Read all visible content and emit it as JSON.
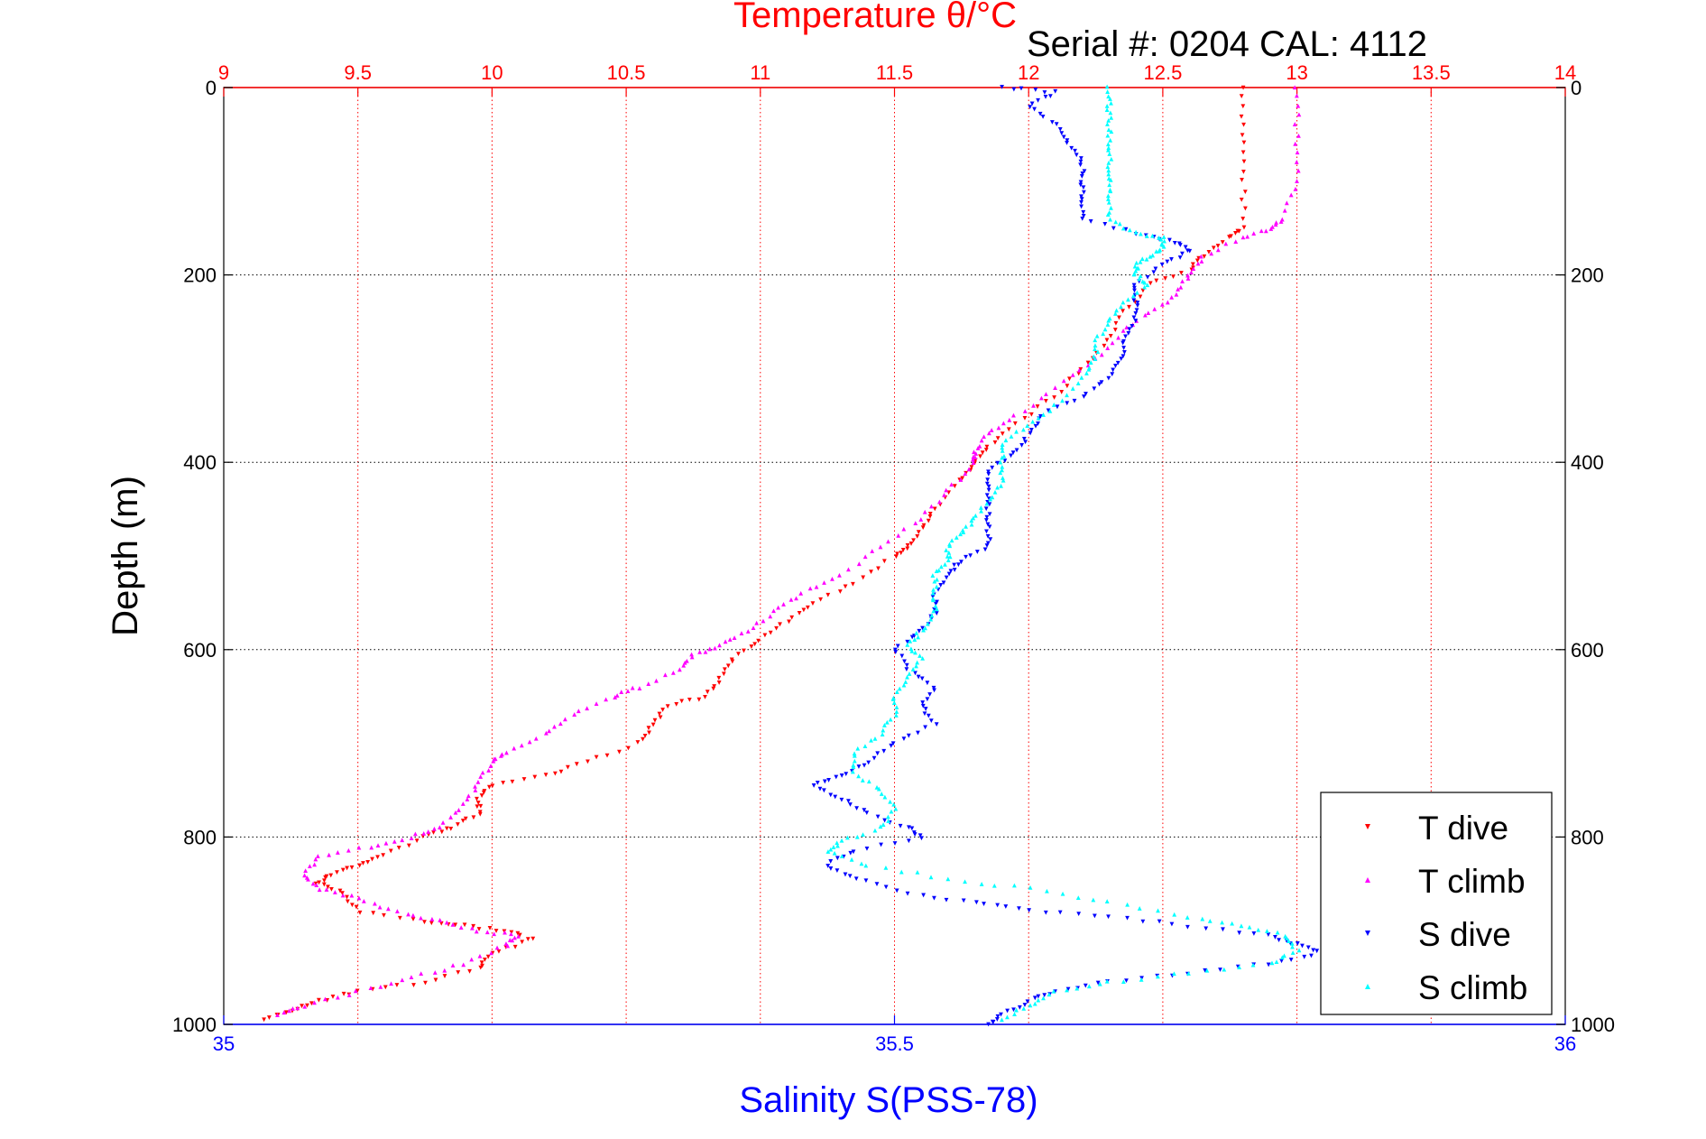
{
  "chart_data": {
    "type": "scatter",
    "serial_label": "Serial #: 0204  CAL: 4112",
    "ylabel": "Depth (m)",
    "ylim": [
      0,
      1000
    ],
    "y_ticks": [
      0,
      200,
      400,
      600,
      800,
      1000
    ],
    "y_tick_labels": [
      "0",
      "200",
      "400",
      "600",
      "800",
      "1000"
    ],
    "x_axis_top": {
      "label": "Temperature θ/°C",
      "range": [
        9,
        14
      ],
      "ticks": [
        9,
        9.5,
        10,
        10.5,
        11,
        11.5,
        12,
        12.5,
        13,
        13.5,
        14
      ],
      "tick_labels": [
        "9",
        "9.5",
        "10",
        "10.5",
        "11",
        "11.5",
        "12",
        "12.5",
        "13",
        "13.5",
        "14"
      ],
      "color": "#ff0000"
    },
    "x_axis_bottom": {
      "label": "Salinity S(PSS-78)",
      "range": [
        35,
        36
      ],
      "ticks": [
        35,
        35.5,
        36
      ],
      "tick_labels": [
        "35",
        "35.5",
        "36"
      ],
      "color": "#0000ff"
    },
    "grid": true,
    "legend_position": "bottom-right",
    "series": [
      {
        "name": "T dive",
        "axis": "top",
        "color": "#ff0000",
        "points": [
          [
            12.8,
            0
          ],
          [
            12.8,
            50
          ],
          [
            12.8,
            100
          ],
          [
            12.8,
            150
          ],
          [
            12.75,
            160
          ],
          [
            12.65,
            180
          ],
          [
            12.6,
            195
          ],
          [
            12.45,
            210
          ],
          [
            12.35,
            240
          ],
          [
            12.3,
            270
          ],
          [
            12.2,
            300
          ],
          [
            12.1,
            330
          ],
          [
            11.95,
            360
          ],
          [
            11.85,
            385
          ],
          [
            11.8,
            400
          ],
          [
            11.75,
            420
          ],
          [
            11.65,
            450
          ],
          [
            11.6,
            470
          ],
          [
            11.55,
            490
          ],
          [
            11.5,
            500
          ],
          [
            11.35,
            530
          ],
          [
            11.2,
            550
          ],
          [
            11.1,
            570
          ],
          [
            11.0,
            590
          ],
          [
            10.9,
            610
          ],
          [
            10.85,
            630
          ],
          [
            10.8,
            650
          ],
          [
            10.65,
            660
          ],
          [
            10.6,
            680
          ],
          [
            10.55,
            700
          ],
          [
            10.35,
            720
          ],
          [
            10.2,
            735
          ],
          [
            10.0,
            745
          ],
          [
            9.95,
            760
          ],
          [
            9.95,
            775
          ],
          [
            9.85,
            790
          ],
          [
            9.75,
            800
          ],
          [
            9.6,
            820
          ],
          [
            9.5,
            830
          ],
          [
            9.4,
            840
          ],
          [
            9.35,
            850
          ],
          [
            9.45,
            860
          ],
          [
            9.5,
            880
          ],
          [
            9.75,
            890
          ],
          [
            9.9,
            895
          ],
          [
            10.05,
            900
          ],
          [
            10.15,
            910
          ],
          [
            10.0,
            925
          ],
          [
            9.95,
            940
          ],
          [
            9.75,
            955
          ],
          [
            9.5,
            965
          ],
          [
            9.35,
            975
          ],
          [
            9.25,
            985
          ],
          [
            9.15,
            995
          ]
        ]
      },
      {
        "name": "T climb",
        "axis": "top",
        "color": "#ff00ff",
        "points": [
          [
            13.0,
            0
          ],
          [
            13.0,
            50
          ],
          [
            13.0,
            100
          ],
          [
            12.95,
            140
          ],
          [
            12.9,
            150
          ],
          [
            12.8,
            160
          ],
          [
            12.65,
            180
          ],
          [
            12.6,
            200
          ],
          [
            12.55,
            220
          ],
          [
            12.45,
            240
          ],
          [
            12.35,
            260
          ],
          [
            12.25,
            290
          ],
          [
            12.1,
            320
          ],
          [
            11.95,
            350
          ],
          [
            11.85,
            370
          ],
          [
            11.8,
            390
          ],
          [
            11.8,
            400
          ],
          [
            11.7,
            430
          ],
          [
            11.6,
            460
          ],
          [
            11.45,
            490
          ],
          [
            11.3,
            520
          ],
          [
            11.15,
            540
          ],
          [
            11.05,
            560
          ],
          [
            10.95,
            580
          ],
          [
            10.85,
            595
          ],
          [
            10.75,
            605
          ],
          [
            10.7,
            620
          ],
          [
            10.55,
            640
          ],
          [
            10.45,
            650
          ],
          [
            10.3,
            670
          ],
          [
            10.2,
            690
          ],
          [
            10.05,
            710
          ],
          [
            10.0,
            720
          ],
          [
            9.95,
            740
          ],
          [
            9.9,
            765
          ],
          [
            9.8,
            790
          ],
          [
            9.7,
            800
          ],
          [
            9.55,
            810
          ],
          [
            9.35,
            820
          ],
          [
            9.3,
            840
          ],
          [
            9.35,
            855
          ],
          [
            9.5,
            865
          ],
          [
            9.65,
            880
          ],
          [
            9.8,
            890
          ],
          [
            9.95,
            900
          ],
          [
            10.1,
            905
          ],
          [
            10.05,
            915
          ],
          [
            9.9,
            935
          ],
          [
            9.7,
            950
          ],
          [
            9.5,
            965
          ],
          [
            9.3,
            980
          ],
          [
            9.2,
            990
          ]
        ]
      },
      {
        "name": "S dive",
        "axis": "bottom",
        "color": "#0000ff",
        "points": [
          [
            35.58,
            0
          ],
          [
            35.62,
            5
          ],
          [
            35.6,
            20
          ],
          [
            35.62,
            40
          ],
          [
            35.63,
            60
          ],
          [
            35.64,
            80
          ],
          [
            35.64,
            100
          ],
          [
            35.64,
            120
          ],
          [
            35.64,
            140
          ],
          [
            35.68,
            155
          ],
          [
            35.71,
            165
          ],
          [
            35.72,
            175
          ],
          [
            35.7,
            190
          ],
          [
            35.68,
            210
          ],
          [
            35.68,
            230
          ],
          [
            35.68,
            250
          ],
          [
            35.67,
            270
          ],
          [
            35.67,
            290
          ],
          [
            35.66,
            310
          ],
          [
            35.64,
            330
          ],
          [
            35.61,
            350
          ],
          [
            35.6,
            370
          ],
          [
            35.59,
            390
          ],
          [
            35.57,
            410
          ],
          [
            35.57,
            430
          ],
          [
            35.57,
            450
          ],
          [
            35.57,
            470
          ],
          [
            35.57,
            490
          ],
          [
            35.55,
            505
          ],
          [
            35.54,
            520
          ],
          [
            35.53,
            540
          ],
          [
            35.53,
            560
          ],
          [
            35.52,
            580
          ],
          [
            35.5,
            600
          ],
          [
            35.51,
            620
          ],
          [
            35.53,
            640
          ],
          [
            35.52,
            660
          ],
          [
            35.53,
            680
          ],
          [
            35.5,
            700
          ],
          [
            35.48,
            720
          ],
          [
            35.46,
            735
          ],
          [
            35.44,
            745
          ],
          [
            35.46,
            760
          ],
          [
            35.48,
            775
          ],
          [
            35.51,
            790
          ],
          [
            35.52,
            800
          ],
          [
            35.47,
            815
          ],
          [
            35.45,
            830
          ],
          [
            35.47,
            845
          ],
          [
            35.51,
            860
          ],
          [
            35.56,
            870
          ],
          [
            35.6,
            878
          ],
          [
            35.66,
            885
          ],
          [
            35.72,
            895
          ],
          [
            35.78,
            905
          ],
          [
            35.8,
            915
          ],
          [
            35.82,
            925
          ],
          [
            35.78,
            935
          ],
          [
            35.72,
            945
          ],
          [
            35.66,
            955
          ],
          [
            35.62,
            965
          ],
          [
            35.6,
            975
          ],
          [
            35.58,
            990
          ],
          [
            35.57,
            1000
          ]
        ]
      },
      {
        "name": "S climb",
        "axis": "bottom",
        "color": "#00ffff",
        "points": [
          [
            35.66,
            0
          ],
          [
            35.66,
            20
          ],
          [
            35.66,
            40
          ],
          [
            35.66,
            60
          ],
          [
            35.66,
            80
          ],
          [
            35.66,
            100
          ],
          [
            35.66,
            120
          ],
          [
            35.66,
            140
          ],
          [
            35.68,
            155
          ],
          [
            35.7,
            160
          ],
          [
            35.7,
            170
          ],
          [
            35.69,
            180
          ],
          [
            35.68,
            190
          ],
          [
            35.68,
            200
          ],
          [
            35.69,
            210
          ],
          [
            35.67,
            230
          ],
          [
            35.66,
            250
          ],
          [
            35.65,
            270
          ],
          [
            35.65,
            290
          ],
          [
            35.64,
            310
          ],
          [
            35.62,
            340
          ],
          [
            35.6,
            360
          ],
          [
            35.58,
            380
          ],
          [
            35.58,
            400
          ],
          [
            35.58,
            420
          ],
          [
            35.57,
            440
          ],
          [
            35.56,
            460
          ],
          [
            35.55,
            475
          ],
          [
            35.54,
            490
          ],
          [
            35.54,
            505
          ],
          [
            35.53,
            520
          ],
          [
            35.53,
            540
          ],
          [
            35.53,
            560
          ],
          [
            35.52,
            580
          ],
          [
            35.51,
            595
          ],
          [
            35.52,
            610
          ],
          [
            35.51,
            630
          ],
          [
            35.5,
            650
          ],
          [
            35.5,
            670
          ],
          [
            35.49,
            690
          ],
          [
            35.47,
            710
          ],
          [
            35.47,
            730
          ],
          [
            35.49,
            750
          ],
          [
            35.5,
            770
          ],
          [
            35.49,
            790
          ],
          [
            35.46,
            805
          ],
          [
            35.45,
            815
          ],
          [
            35.48,
            830
          ],
          [
            35.54,
            845
          ],
          [
            35.6,
            855
          ],
          [
            35.66,
            870
          ],
          [
            35.72,
            885
          ],
          [
            35.76,
            895
          ],
          [
            35.79,
            905
          ],
          [
            35.8,
            920
          ],
          [
            35.78,
            935
          ],
          [
            35.72,
            945
          ],
          [
            35.66,
            955
          ],
          [
            35.62,
            965
          ],
          [
            35.6,
            980
          ],
          [
            35.58,
            995
          ]
        ]
      }
    ]
  }
}
